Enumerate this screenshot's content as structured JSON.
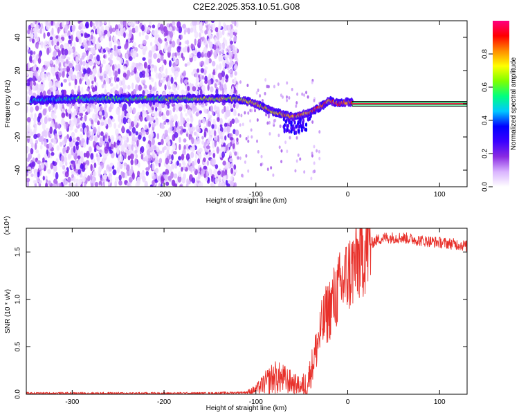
{
  "figure_title": "C2E2.2025.353.10.51.G08",
  "chart_data": [
    {
      "type": "heatmap",
      "title": "C2E2.2025.353.10.51.G08",
      "xlabel": "Height of straight line (km)",
      "ylabel": "Frequency (Hz)",
      "xlim": [
        -350,
        130
      ],
      "ylim": [
        -50,
        50
      ],
      "xticks": [
        -300,
        -200,
        -100,
        0,
        100
      ],
      "xtick_labels": [
        "-300",
        "-200",
        "-100",
        "0",
        "100"
      ],
      "yticks": [
        -40,
        -20,
        0,
        20,
        40
      ],
      "ytick_labels": [
        "-40",
        "-20",
        "0",
        "20",
        "40"
      ],
      "colorbar": {
        "label": "Normalized spectral amplitude",
        "range": [
          0,
          1
        ],
        "ticks": [
          0,
          0.2,
          0.4,
          0.6,
          0.8
        ],
        "tick_labels": [
          "0.0",
          "0.2",
          "0.4",
          "0.6",
          "0.8"
        ],
        "colormap": [
          "#ffffff",
          "#d9b3ff",
          "#8a2be2",
          "#3b00ff",
          "#0000ff",
          "#00c8ff",
          "#00ff7f",
          "#7fff00",
          "#ffff00",
          "#ff8c00",
          "#ff0000",
          "#ff0080"
        ]
      },
      "signal_track": {
        "x": [
          -345,
          -300,
          -250,
          -200,
          -150,
          -120,
          -100,
          -80,
          -60,
          -45,
          -30,
          -20,
          -10,
          0,
          5
        ],
        "y": [
          2,
          3,
          3,
          3,
          3,
          3,
          0,
          -5,
          -8,
          -6,
          -2,
          2,
          0,
          1,
          1
        ]
      },
      "extrapolated_line": {
        "x": [
          5,
          130
        ],
        "y": 0,
        "color": "#e8254a"
      },
      "noise_region_x": [
        -350,
        -120
      ]
    },
    {
      "type": "line",
      "title": "",
      "xlabel": "Height of straight line (km)",
      "ylabel": "SNR (10 * v/v)",
      "y_multiplier": "(x10⁴)",
      "xlim": [
        -350,
        130
      ],
      "ylim": [
        0,
        1.75
      ],
      "xticks": [
        -300,
        -200,
        -100,
        0,
        100
      ],
      "xtick_labels": [
        "-300",
        "-200",
        "-100",
        "0",
        "100"
      ],
      "yticks": [
        0,
        0.5,
        1.0,
        1.5
      ],
      "ytick_labels": [
        "0.0",
        "0.5",
        "1.0",
        "1.5"
      ],
      "color": "#e8302a",
      "series": [
        {
          "name": "SNR",
          "x": [
            -350,
            -300,
            -250,
            -200,
            -150,
            -110,
            -100,
            -90,
            -80,
            -70,
            -60,
            -50,
            -45,
            -40,
            -35,
            -30,
            -25,
            -20,
            -10,
            0,
            10,
            20,
            30,
            40,
            60,
            80,
            100,
            120,
            130
          ],
          "values": [
            0.01,
            0.01,
            0.01,
            0.01,
            0.01,
            0.02,
            0.05,
            0.12,
            0.18,
            0.16,
            0.12,
            0.08,
            0.1,
            0.25,
            0.45,
            0.65,
            0.8,
            0.9,
            1.1,
            1.25,
            1.4,
            1.55,
            1.62,
            1.65,
            1.65,
            1.62,
            1.6,
            1.58,
            1.56
          ]
        }
      ]
    }
  ]
}
